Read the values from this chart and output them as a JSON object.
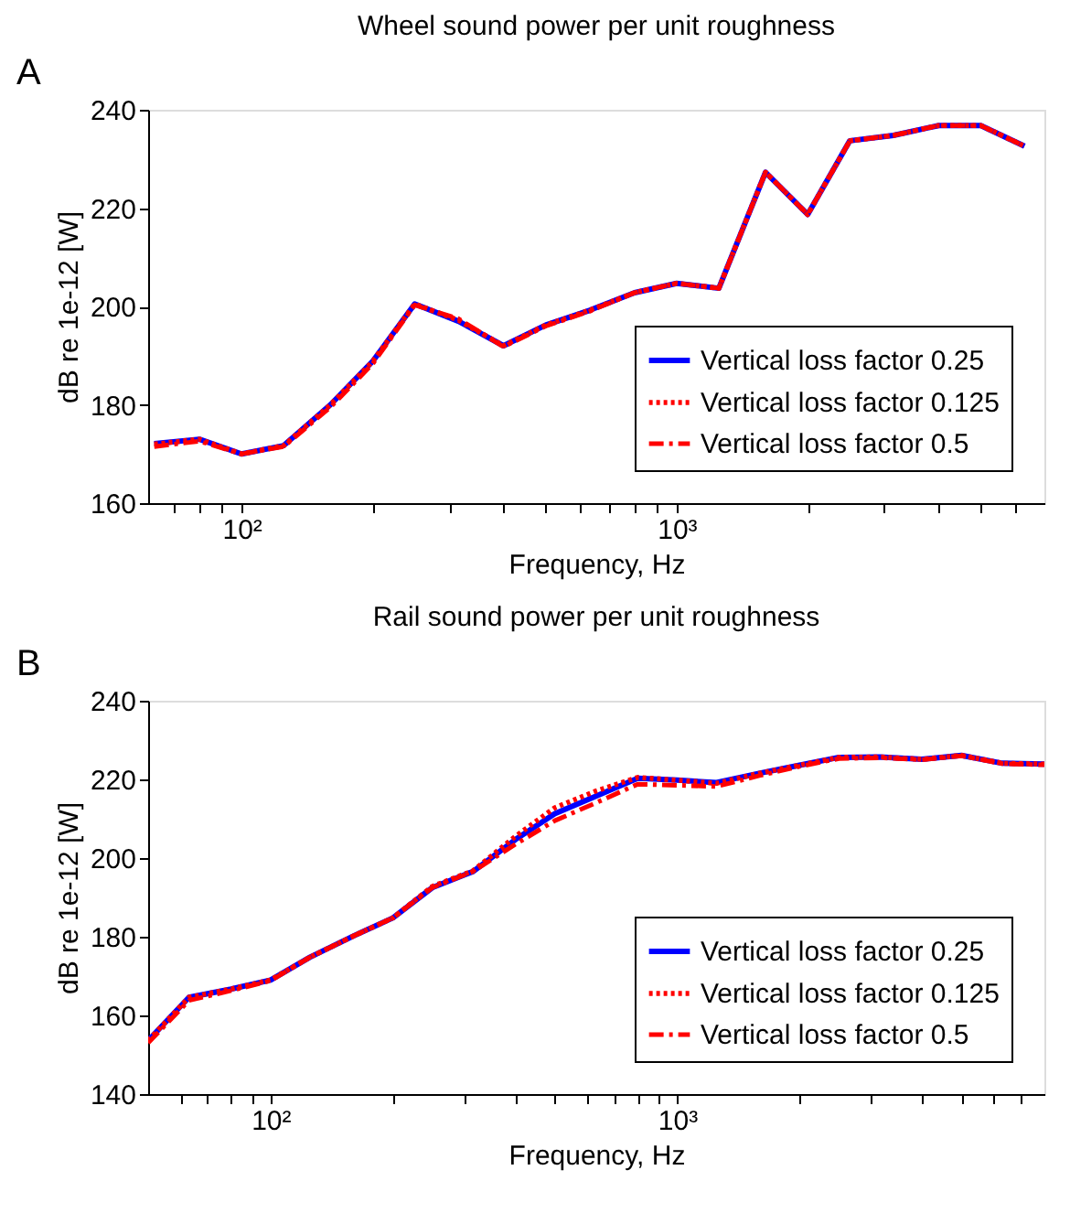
{
  "chart_data": [
    {
      "type": "line",
      "title": "Wheel sound power per unit roughness",
      "xlabel": "Frequency, Hz",
      "ylabel": "dB re 1e-12 [W]",
      "annotations": [
        "A"
      ],
      "log": "x",
      "grid": false,
      "legend": "bottom right",
      "marker": "none",
      "x": [
        63,
        80,
        100,
        125,
        160,
        200,
        250,
        315,
        400,
        500,
        630,
        800,
        1000,
        1250,
        1600,
        2000,
        2500,
        3150,
        4000,
        5000,
        6300
      ],
      "xlim": [
        61,
        7000
      ],
      "xticks": [
        {
          "value": 70,
          "label": null
        },
        {
          "value": 80,
          "label": null
        },
        {
          "value": 90,
          "label": null
        },
        {
          "value": 100,
          "label": "10²"
        },
        {
          "value": 200,
          "label": null
        },
        {
          "value": 300,
          "label": null
        },
        {
          "value": 400,
          "label": null
        },
        {
          "value": 500,
          "label": null
        },
        {
          "value": 600,
          "label": null
        },
        {
          "value": 700,
          "label": null
        },
        {
          "value": 800,
          "label": null
        },
        {
          "value": 900,
          "label": null
        },
        {
          "value": 1000,
          "label": "10³"
        },
        {
          "value": 2000,
          "label": null
        },
        {
          "value": 3000,
          "label": null
        },
        {
          "value": 4000,
          "label": null
        },
        {
          "value": 5000,
          "label": null
        },
        {
          "value": 6000,
          "label": null
        }
      ],
      "ylim": [
        160,
        240
      ],
      "yticks": [
        160,
        180,
        200,
        220,
        240
      ],
      "series": [
        {
          "name": "Vertical loss factor 0.25",
          "color": "#0000ff",
          "line_style": "solid",
          "values": [
            172.1,
            173,
            170,
            171.7,
            180,
            188.8,
            200.5,
            197,
            192,
            196.2,
            199.2,
            202.8,
            204.7,
            203.7,
            227.3,
            218.7,
            233.7,
            234.8,
            236.8,
            236.8,
            232.6
          ]
        },
        {
          "name": "Vertical loss factor 0.125",
          "color": "#ff0000",
          "line_style": "dotted",
          "values": [
            172,
            173,
            170,
            171.7,
            180,
            188.8,
            200.5,
            197.2,
            192,
            196.2,
            199.2,
            202.8,
            204.7,
            203.7,
            227.3,
            218.7,
            233.7,
            234.8,
            236.8,
            236.8,
            232.6
          ]
        },
        {
          "name": "Vertical loss factor 0.5",
          "color": "#ff0000",
          "line_style": "dashdot",
          "values": [
            171.5,
            172.6,
            170,
            171.5,
            179.5,
            188.3,
            200.3,
            197.5,
            191.8,
            196,
            199,
            202.8,
            204.7,
            203.7,
            227.3,
            218.7,
            233.7,
            234.8,
            236.8,
            236.8,
            232.6
          ]
        }
      ]
    },
    {
      "type": "line",
      "title": "Rail sound power per unit roughness",
      "xlabel": "Frequency, Hz",
      "ylabel": "dB re 1e-12 [W]",
      "annotations": [
        "B"
      ],
      "log": "x",
      "grid": false,
      "legend": "bottom right",
      "marker": "none",
      "x": [
        50,
        63,
        80,
        100,
        125,
        160,
        200,
        250,
        315,
        400,
        500,
        630,
        800,
        1000,
        1250,
        1600,
        2000,
        2500,
        3150,
        4000,
        5000,
        6300,
        8000
      ],
      "xlim": [
        50,
        8000
      ],
      "xticks": [
        {
          "value": 60,
          "label": null
        },
        {
          "value": 70,
          "label": null
        },
        {
          "value": 80,
          "label": null
        },
        {
          "value": 90,
          "label": null
        },
        {
          "value": 100,
          "label": "10²"
        },
        {
          "value": 200,
          "label": null
        },
        {
          "value": 300,
          "label": null
        },
        {
          "value": 400,
          "label": null
        },
        {
          "value": 500,
          "label": null
        },
        {
          "value": 600,
          "label": null
        },
        {
          "value": 700,
          "label": null
        },
        {
          "value": 800,
          "label": null
        },
        {
          "value": 900,
          "label": null
        },
        {
          "value": 1000,
          "label": "10³"
        },
        {
          "value": 2000,
          "label": null
        },
        {
          "value": 3000,
          "label": null
        },
        {
          "value": 4000,
          "label": null
        },
        {
          "value": 5000,
          "label": null
        },
        {
          "value": 6000,
          "label": null
        },
        {
          "value": 7000,
          "label": null
        }
      ],
      "ylim": [
        140,
        240
      ],
      "yticks": [
        140,
        160,
        180,
        200,
        220,
        240
      ],
      "series": [
        {
          "name": "Vertical loss factor 0.25",
          "color": "#0000ff",
          "line_style": "solid",
          "values": [
            153.6,
            164.6,
            166.7,
            169,
            174.8,
            180.2,
            184.8,
            192.5,
            196.6,
            204.7,
            211.3,
            215.7,
            220.3,
            219.8,
            219.2,
            221.6,
            223.6,
            225.6,
            225.7,
            225.1,
            226.1,
            224.1,
            223.9
          ]
        },
        {
          "name": "Vertical loss factor 0.125",
          "color": "#ff0000",
          "line_style": "dotted",
          "values": [
            153.6,
            164.6,
            166.7,
            169,
            174.8,
            180.2,
            184.8,
            192.8,
            196.8,
            205.5,
            212.8,
            217,
            220.5,
            219.8,
            219,
            221.6,
            223.6,
            225.6,
            225.7,
            225.1,
            226.1,
            224.1,
            223.9
          ]
        },
        {
          "name": "Vertical loss factor 0.5",
          "color": "#ff0000",
          "line_style": "dashdot",
          "values": [
            153,
            163.8,
            166.3,
            168.8,
            174.8,
            180.2,
            184.8,
            192.5,
            196.6,
            203.5,
            209.5,
            214,
            218.8,
            218.5,
            218.2,
            221,
            223.3,
            225.3,
            225.5,
            225,
            226,
            224,
            223.7
          ]
        }
      ]
    }
  ]
}
